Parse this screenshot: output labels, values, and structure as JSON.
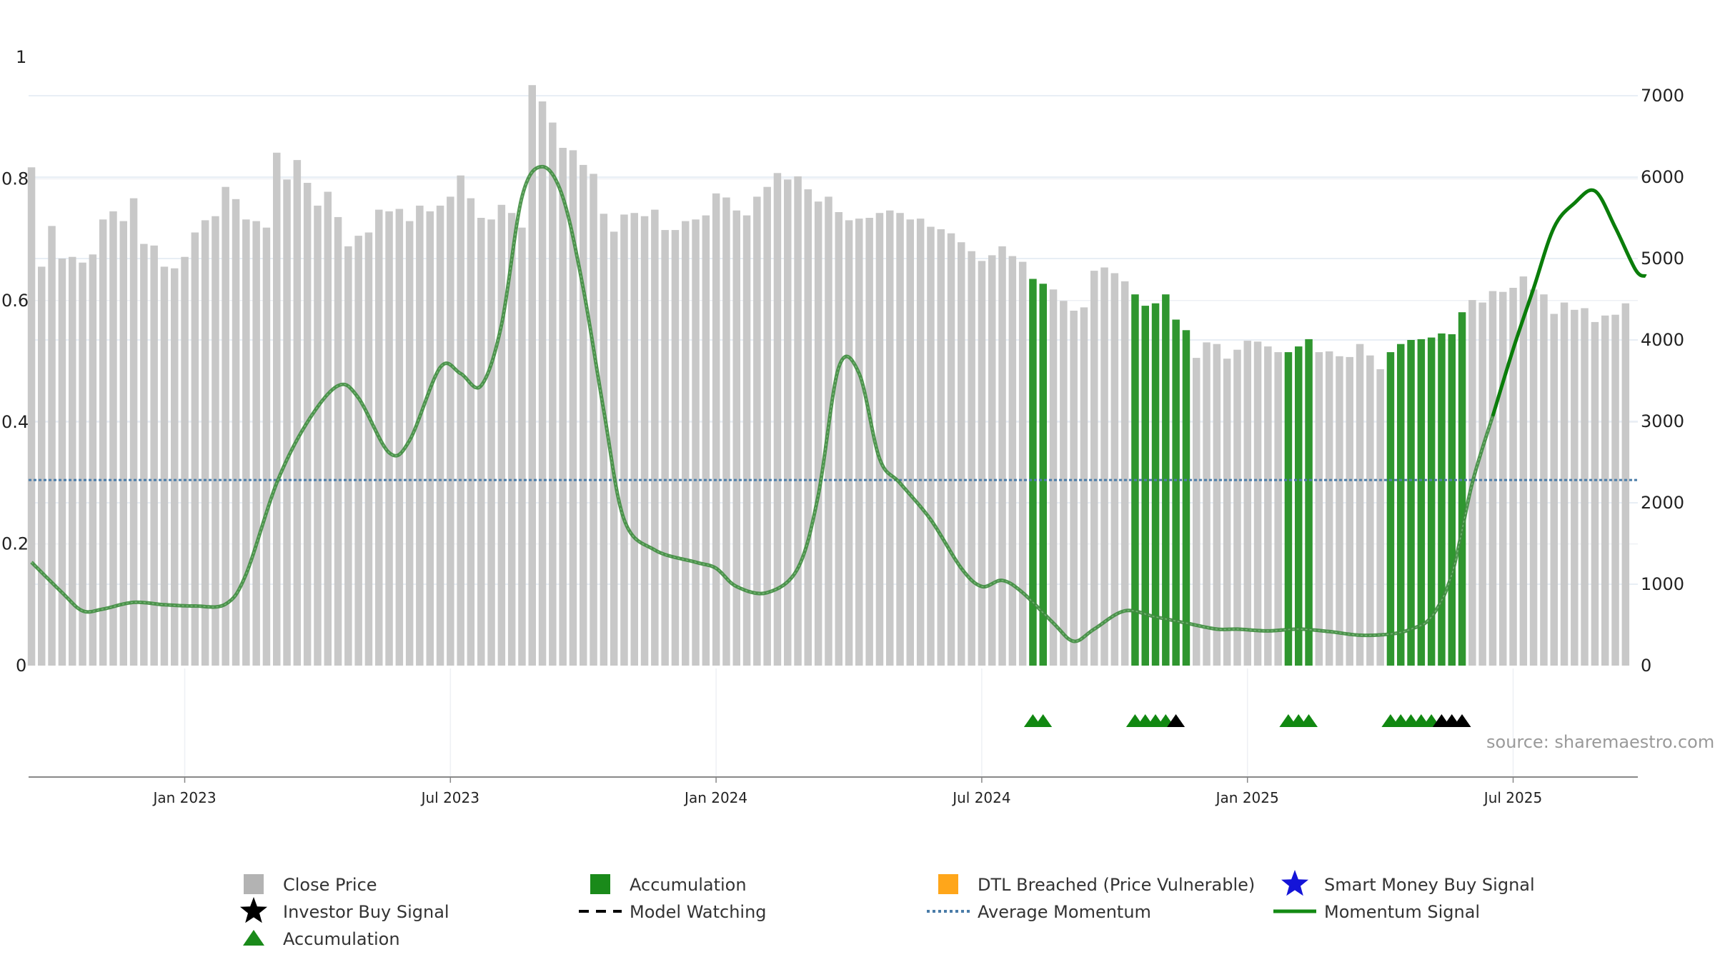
{
  "source_note": "source: sharemaestro.com",
  "colors": {
    "close_bar": "#c8c8c8",
    "accumulation_bar": "#2f962f",
    "accumulation_triangle": "#118811",
    "investor_marker": "#000000",
    "momentum_line": "#3d8b3d",
    "momentum_line_strong": "#0a7d0a",
    "average_line": "#4a7ca8",
    "grid": "#e8eef5",
    "dtl_marker": "#ffa61a",
    "smart_money_marker": "#1414d8",
    "axis": "#888888"
  },
  "legend": [
    {
      "label": "Close Price",
      "icon": "gray-square-icon"
    },
    {
      "label": "Accumulation",
      "icon": "green-square-icon"
    },
    {
      "label": "DTL Breached (Price Vulnerable)",
      "icon": "orange-square-icon"
    },
    {
      "label": "Smart Money Buy Signal",
      "icon": "blue-star-icon"
    },
    {
      "label": "Investor Buy Signal",
      "icon": "black-star-icon"
    },
    {
      "label": "Model Watching",
      "icon": "black-dashed-line-icon"
    },
    {
      "label": "Average Momentum",
      "icon": "blue-dotted-line-icon"
    },
    {
      "label": "Momentum Signal",
      "icon": "green-line-icon"
    },
    {
      "label": "Accumulation",
      "icon": "green-triangle-icon"
    }
  ],
  "chart_data": {
    "type": "bar",
    "x_axis": {
      "ticks": [
        "Jan 2023",
        "Jul 2023",
        "Jan 2024",
        "Jul 2024",
        "Jan 2025",
        "Jul 2025"
      ],
      "tick_bar_index": [
        15,
        41,
        67,
        93,
        119,
        145
      ]
    },
    "y_left": {
      "ticks": [
        "0",
        "0.2",
        "0.4",
        "0.6",
        "0.8",
        "1"
      ],
      "range": [
        0,
        1
      ]
    },
    "y_right": {
      "ticks": [
        "0",
        "1000",
        "2000",
        "3000",
        "4000",
        "5000",
        "6000",
        "7000"
      ],
      "range": [
        0,
        7500
      ]
    },
    "series": [
      {
        "name": "Close Price",
        "axis": "right",
        "values": [
          6120,
          4900,
          5400,
          5000,
          5020,
          4950,
          5050,
          5480,
          5580,
          5460,
          5740,
          5180,
          5160,
          4900,
          4880,
          5020,
          5320,
          5470,
          5520,
          5880,
          5730,
          5480,
          5460,
          5380,
          6300,
          5970,
          6210,
          5930,
          5650,
          5820,
          5510,
          5150,
          5280,
          5320,
          5600,
          5580,
          5610,
          5460,
          5650,
          5580,
          5650,
          5760,
          6020,
          5740,
          5500,
          5480,
          5660,
          5560,
          5380,
          7130,
          6930,
          6670,
          6360,
          6330,
          6150,
          6040,
          5550,
          5330,
          5540,
          5560,
          5520,
          5600,
          5350,
          5350,
          5460,
          5480,
          5530,
          5800,
          5750,
          5590,
          5530,
          5760,
          5880,
          6050,
          5970,
          6010,
          5850,
          5700,
          5760,
          5570,
          5470,
          5490,
          5500,
          5560,
          5590,
          5560,
          5480,
          5490,
          5390,
          5360,
          5310,
          5200,
          5090,
          4970,
          5040,
          5150,
          5030,
          4960,
          4750,
          4690,
          4620,
          4480,
          4360,
          4400,
          4850,
          4890,
          4820,
          4720,
          4560,
          4420,
          4450,
          4560,
          4250,
          4120,
          3780,
          3970,
          3950,
          3770,
          3880,
          3990,
          3980,
          3920,
          3850,
          3850,
          3920,
          4010,
          3850,
          3860,
          3800,
          3790,
          3950,
          3810,
          3640,
          3850,
          3950,
          4000,
          4010,
          4030,
          4080,
          4070,
          4340,
          4490,
          4460,
          4600,
          4590,
          4640,
          4780,
          4620,
          4560,
          4320,
          4460,
          4370,
          4390,
          4220,
          4300,
          4310,
          4450
        ]
      },
      {
        "name": "Momentum Signal",
        "axis": "left",
        "points": [
          [
            0,
            0.17
          ],
          [
            3,
            0.12
          ],
          [
            5,
            0.09
          ],
          [
            7,
            0.093
          ],
          [
            10,
            0.104
          ],
          [
            13,
            0.1
          ],
          [
            16,
            0.098
          ],
          [
            19,
            0.101
          ],
          [
            21,
            0.15
          ],
          [
            24,
            0.3
          ],
          [
            27,
            0.4
          ],
          [
            30,
            0.46
          ],
          [
            32,
            0.44
          ],
          [
            35,
            0.35
          ],
          [
            37,
            0.37
          ],
          [
            40,
            0.49
          ],
          [
            42,
            0.48
          ],
          [
            44,
            0.46
          ],
          [
            46,
            0.56
          ],
          [
            48,
            0.77
          ],
          [
            50,
            0.82
          ],
          [
            52,
            0.77
          ],
          [
            54,
            0.62
          ],
          [
            56,
            0.42
          ],
          [
            58,
            0.24
          ],
          [
            61,
            0.19
          ],
          [
            65,
            0.17
          ],
          [
            67,
            0.16
          ],
          [
            69,
            0.13
          ],
          [
            72,
            0.12
          ],
          [
            75,
            0.16
          ],
          [
            77,
            0.28
          ],
          [
            79,
            0.49
          ],
          [
            81,
            0.48
          ],
          [
            83,
            0.34
          ],
          [
            85,
            0.3
          ],
          [
            88,
            0.24
          ],
          [
            91,
            0.16
          ],
          [
            93,
            0.13
          ],
          [
            95,
            0.14
          ],
          [
            97,
            0.12
          ],
          [
            100,
            0.07
          ],
          [
            102,
            0.04
          ],
          [
            104,
            0.06
          ],
          [
            107,
            0.09
          ],
          [
            110,
            0.08
          ],
          [
            113,
            0.07
          ],
          [
            116,
            0.06
          ],
          [
            118,
            0.06
          ],
          [
            121,
            0.057
          ],
          [
            124,
            0.06
          ],
          [
            127,
            0.056
          ],
          [
            130,
            0.05
          ],
          [
            133,
            0.052
          ],
          [
            135,
            0.06
          ],
          [
            137,
            0.08
          ],
          [
            139,
            0.15
          ],
          [
            141,
            0.3
          ],
          [
            143,
            0.41
          ],
          [
            145,
            0.52
          ],
          [
            147,
            0.62
          ],
          [
            149,
            0.72
          ],
          [
            151,
            0.76
          ],
          [
            153,
            0.78
          ],
          [
            155,
            0.72
          ],
          [
            157,
            0.65
          ],
          [
            158,
            0.64
          ]
        ]
      },
      {
        "name": "Average Momentum",
        "axis": "left",
        "value": 0.305
      }
    ],
    "accumulation_bar_indices": [
      98,
      99,
      108,
      109,
      110,
      111,
      112,
      113,
      123,
      124,
      125,
      133,
      134,
      135,
      136,
      137,
      138,
      139,
      140
    ],
    "accumulation_triangle_indices": [
      98,
      99,
      108,
      109,
      110,
      111,
      123,
      124,
      125,
      133,
      134,
      135,
      136,
      137
    ],
    "investor_triangle_indices": [
      112,
      138,
      139,
      140
    ]
  }
}
